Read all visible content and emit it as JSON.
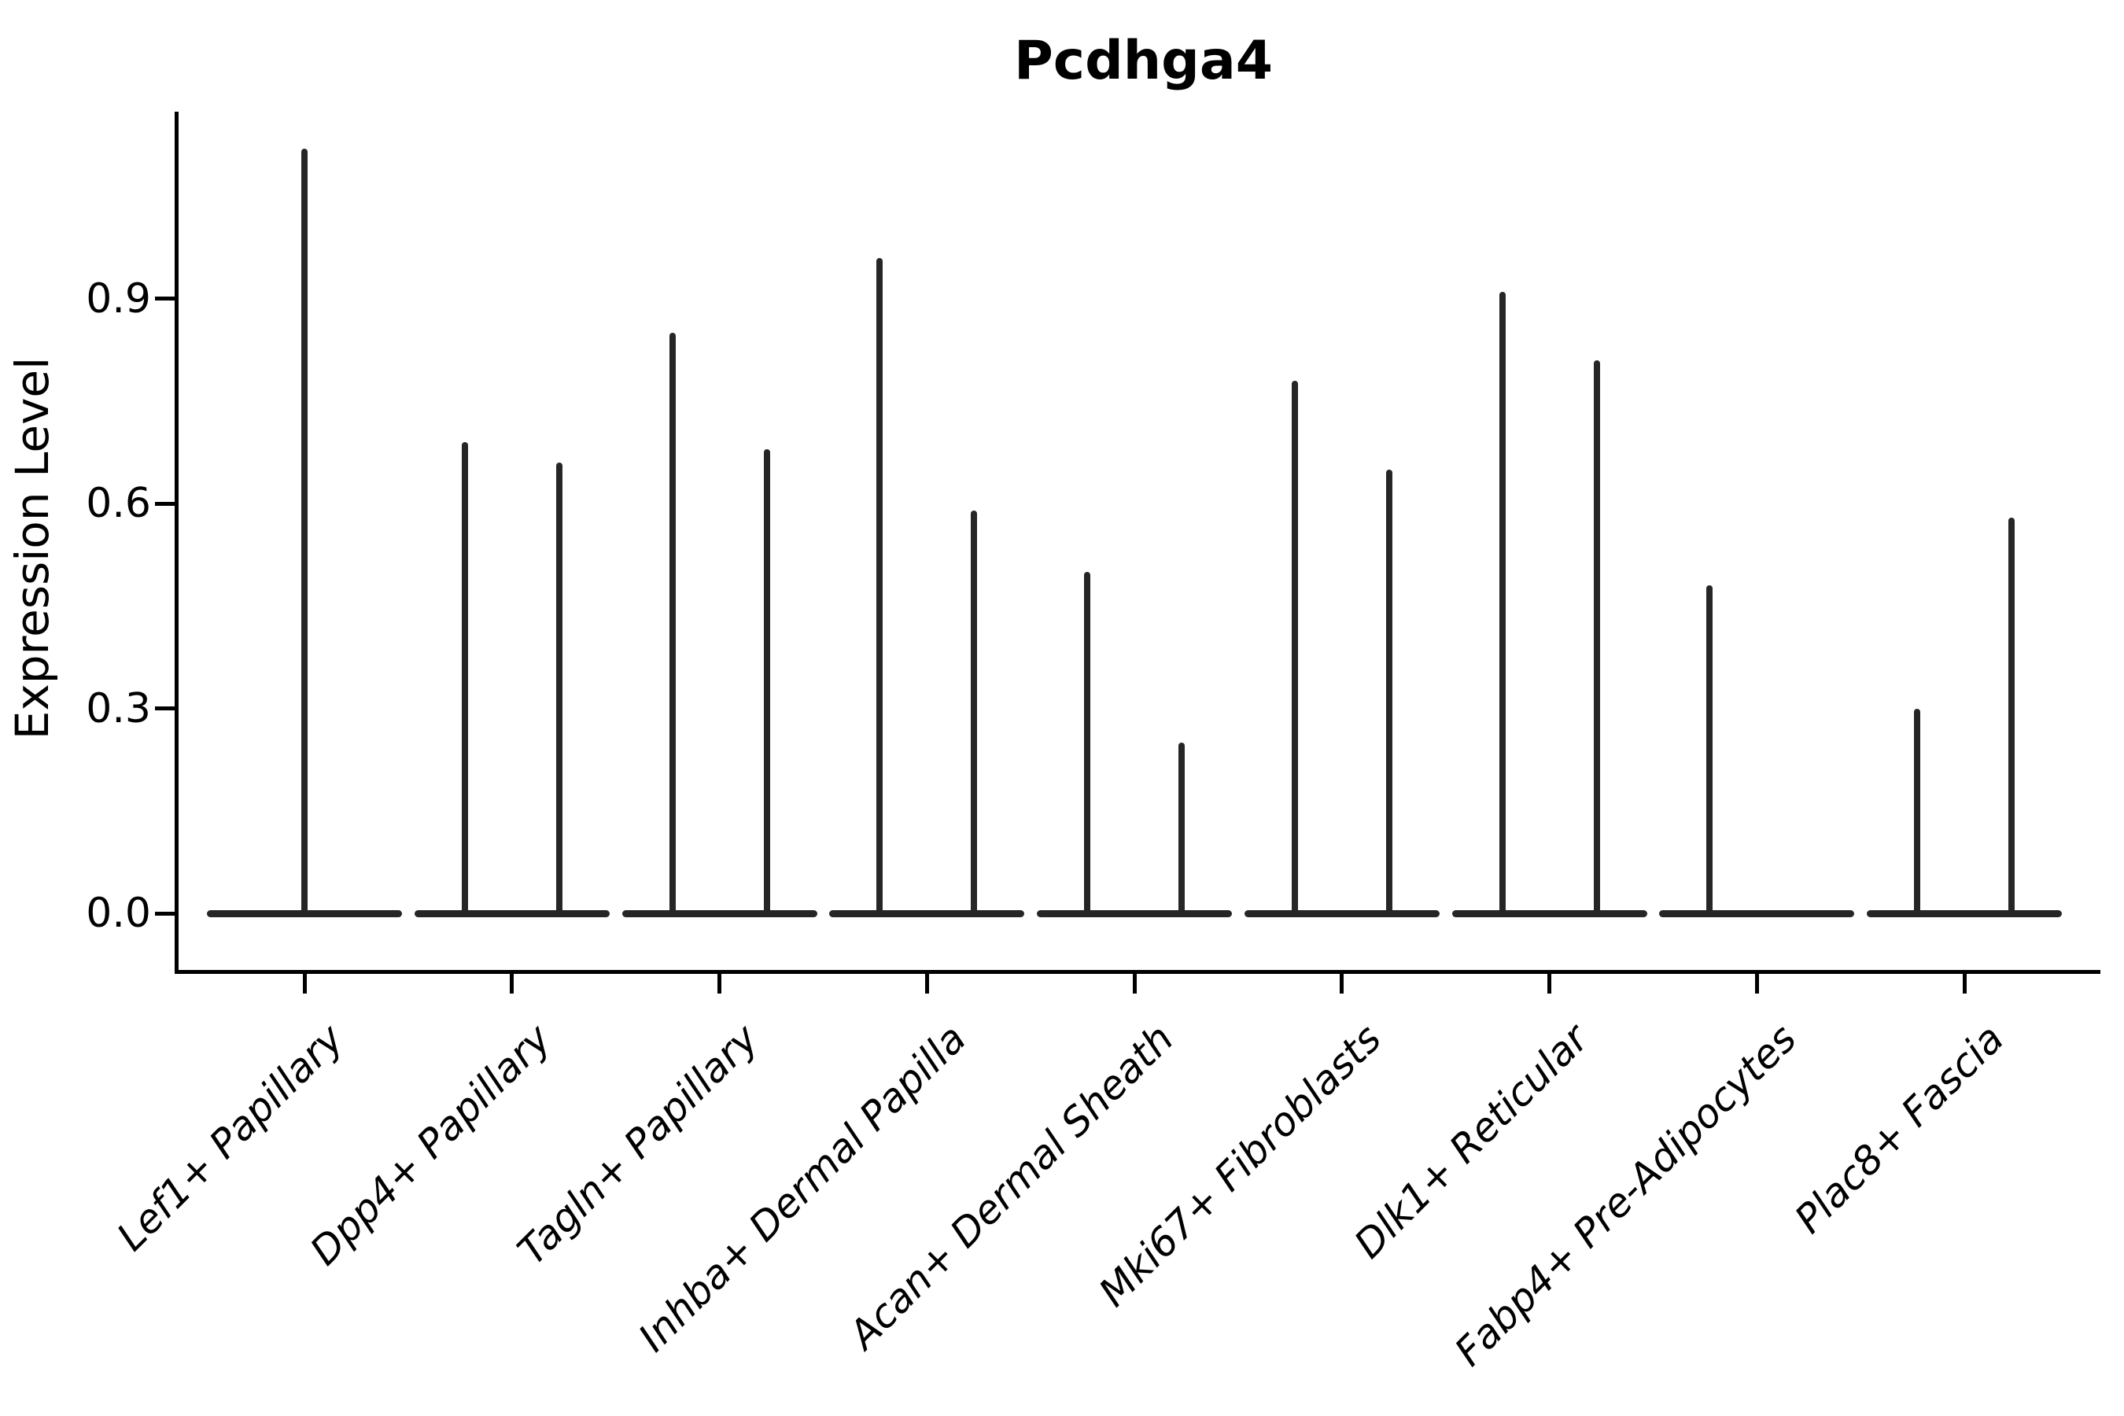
{
  "title": "Pcdhga4",
  "colors": {
    "background": "#ffffff",
    "axis": "#000000",
    "text": "#000000",
    "violin": "#262626"
  },
  "chart_data": {
    "type": "violin",
    "title": "Pcdhga4",
    "xlabel": "",
    "ylabel": "Expression Level",
    "ylim": [
      0,
      1.18
    ],
    "yticks": [
      0.0,
      0.3,
      0.6,
      0.9
    ],
    "ytick_labels": [
      "0.0",
      "0.3",
      "0.6",
      "0.9"
    ],
    "grid": false,
    "legend": "none",
    "description": "Thin spike-shaped violins: flat density pancake at expression 0 with a narrow vertical spike reaching the max expression value; most categories contain a left/right pair of violins.",
    "categories": [
      {
        "label": "Lef1+ Papillary",
        "violins": [
          {
            "position": "center",
            "max": 1.12
          }
        ]
      },
      {
        "label": "Dpp4+ Papillary",
        "violins": [
          {
            "position": "left",
            "max": 0.69
          },
          {
            "position": "right",
            "max": 0.66
          }
        ]
      },
      {
        "label": "Tagln+ Papillary",
        "violins": [
          {
            "position": "left",
            "max": 0.85
          },
          {
            "position": "right",
            "max": 0.68
          }
        ]
      },
      {
        "label": "Inhba+ Dermal Papilla",
        "violins": [
          {
            "position": "left",
            "max": 0.96
          },
          {
            "position": "right",
            "max": 0.59
          }
        ]
      },
      {
        "label": "Acan+ Dermal Sheath",
        "violins": [
          {
            "position": "left",
            "max": 0.5
          },
          {
            "position": "right",
            "max": 0.25
          }
        ]
      },
      {
        "label": "Mki67+ Fibroblasts",
        "violins": [
          {
            "position": "left",
            "max": 0.78
          },
          {
            "position": "right",
            "max": 0.65
          }
        ]
      },
      {
        "label": "Dlk1+ Reticular",
        "violins": [
          {
            "position": "left",
            "max": 0.91
          },
          {
            "position": "right",
            "max": 0.81
          }
        ]
      },
      {
        "label": "Fabp4+ Pre-Adipocytes",
        "violins": [
          {
            "position": "left",
            "max": 0.48
          }
        ]
      },
      {
        "label": "Plac8+ Fascia",
        "violins": [
          {
            "position": "left",
            "max": 0.3
          },
          {
            "position": "right",
            "max": 0.58
          }
        ]
      }
    ]
  }
}
